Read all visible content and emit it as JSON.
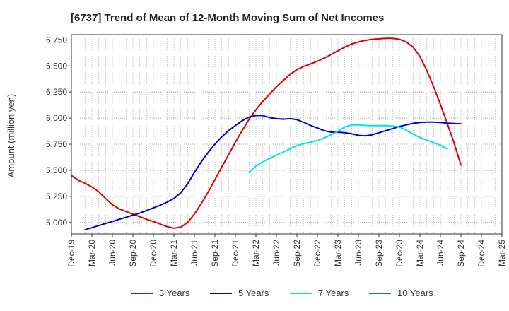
{
  "chart_data": {
    "type": "line",
    "title": "[6737]  Trend of Mean of 12-Month Moving Sum of Net Incomes",
    "xlabel": "",
    "ylabel": "Amount (million yen)",
    "ylim": [
      4890,
      6800
    ],
    "yticks": [
      5000,
      5250,
      5500,
      5750,
      6000,
      6250,
      6500,
      6750
    ],
    "ytick_labels": [
      "5,000",
      "5,250",
      "5,500",
      "5,750",
      "6,000",
      "6,250",
      "6,500",
      "6,750"
    ],
    "x_categories": [
      "Dec-19",
      "Mar-20",
      "Jun-20",
      "Sep-20",
      "Dec-20",
      "Mar-21",
      "Jun-21",
      "Sep-21",
      "Dec-21",
      "Mar-22",
      "Jun-22",
      "Sep-22",
      "Dec-22",
      "Mar-23",
      "Jun-23",
      "Sep-23",
      "Dec-23",
      "Mar-24",
      "Jun-24",
      "Sep-24",
      "Dec-24",
      "Mar-25"
    ],
    "grid": true,
    "legend_position": "bottom",
    "series": [
      {
        "name": "3 Years",
        "color": "#dd0000",
        "values": [
          [
            0,
            5450
          ],
          [
            0.33,
            5405
          ],
          [
            0.67,
            5375
          ],
          [
            1,
            5340
          ],
          [
            1.33,
            5295
          ],
          [
            1.67,
            5230
          ],
          [
            2,
            5170
          ],
          [
            2.33,
            5130
          ],
          [
            2.67,
            5105
          ],
          [
            3,
            5080
          ],
          [
            3.33,
            5055
          ],
          [
            3.67,
            5030
          ],
          [
            4,
            5010
          ],
          [
            4.33,
            4985
          ],
          [
            4.67,
            4960
          ],
          [
            5,
            4945
          ],
          [
            5.33,
            4955
          ],
          [
            5.67,
            5000
          ],
          [
            6,
            5080
          ],
          [
            6.33,
            5180
          ],
          [
            6.67,
            5290
          ],
          [
            7,
            5410
          ],
          [
            7.33,
            5530
          ],
          [
            7.67,
            5650
          ],
          [
            8,
            5770
          ],
          [
            8.33,
            5880
          ],
          [
            8.67,
            5990
          ],
          [
            9,
            6080
          ],
          [
            9.33,
            6160
          ],
          [
            9.67,
            6230
          ],
          [
            10,
            6300
          ],
          [
            10.33,
            6360
          ],
          [
            10.67,
            6420
          ],
          [
            11,
            6465
          ],
          [
            11.33,
            6495
          ],
          [
            11.67,
            6520
          ],
          [
            12,
            6545
          ],
          [
            12.33,
            6575
          ],
          [
            12.67,
            6610
          ],
          [
            13,
            6645
          ],
          [
            13.33,
            6680
          ],
          [
            13.67,
            6710
          ],
          [
            14,
            6730
          ],
          [
            14.33,
            6745
          ],
          [
            14.67,
            6755
          ],
          [
            15,
            6760
          ],
          [
            15.33,
            6765
          ],
          [
            15.67,
            6765
          ],
          [
            16,
            6755
          ],
          [
            16.33,
            6730
          ],
          [
            16.67,
            6680
          ],
          [
            17,
            6590
          ],
          [
            17.33,
            6460
          ],
          [
            17.67,
            6300
          ],
          [
            18,
            6130
          ],
          [
            18.33,
            5950
          ],
          [
            18.67,
            5760
          ],
          [
            19,
            5550
          ]
        ]
      },
      {
        "name": "5 Years",
        "color": "#0000cc",
        "values": [
          [
            0.67,
            4930
          ],
          [
            1,
            4950
          ],
          [
            1.33,
            4970
          ],
          [
            1.67,
            4990
          ],
          [
            2,
            5010
          ],
          [
            2.33,
            5030
          ],
          [
            2.67,
            5050
          ],
          [
            3,
            5070
          ],
          [
            3.33,
            5090
          ],
          [
            3.67,
            5115
          ],
          [
            4,
            5140
          ],
          [
            4.33,
            5165
          ],
          [
            4.67,
            5195
          ],
          [
            5,
            5230
          ],
          [
            5.33,
            5285
          ],
          [
            5.67,
            5370
          ],
          [
            6,
            5480
          ],
          [
            6.33,
            5580
          ],
          [
            6.67,
            5670
          ],
          [
            7,
            5750
          ],
          [
            7.33,
            5820
          ],
          [
            7.67,
            5880
          ],
          [
            8,
            5930
          ],
          [
            8.33,
            5975
          ],
          [
            8.67,
            6010
          ],
          [
            9,
            6025
          ],
          [
            9.33,
            6025
          ],
          [
            9.67,
            6005
          ],
          [
            10,
            5995
          ],
          [
            10.33,
            5990
          ],
          [
            10.67,
            5995
          ],
          [
            11,
            5985
          ],
          [
            11.33,
            5960
          ],
          [
            11.67,
            5930
          ],
          [
            12,
            5905
          ],
          [
            12.33,
            5880
          ],
          [
            12.67,
            5865
          ],
          [
            13,
            5865
          ],
          [
            13.33,
            5860
          ],
          [
            13.67,
            5850
          ],
          [
            14,
            5835
          ],
          [
            14.33,
            5830
          ],
          [
            14.67,
            5840
          ],
          [
            15,
            5860
          ],
          [
            15.33,
            5880
          ],
          [
            15.67,
            5900
          ],
          [
            16,
            5920
          ],
          [
            16.33,
            5935
          ],
          [
            16.67,
            5950
          ],
          [
            17,
            5958
          ],
          [
            17.33,
            5962
          ],
          [
            17.67,
            5962
          ],
          [
            18,
            5958
          ],
          [
            18.33,
            5952
          ],
          [
            18.67,
            5948
          ],
          [
            19,
            5945
          ]
        ]
      },
      {
        "name": "7 Years",
        "color": "#00e5e5",
        "values": [
          [
            8.67,
            5480
          ],
          [
            9,
            5540
          ],
          [
            9.33,
            5580
          ],
          [
            9.67,
            5615
          ],
          [
            10,
            5645
          ],
          [
            10.33,
            5675
          ],
          [
            10.67,
            5705
          ],
          [
            11,
            5735
          ],
          [
            11.33,
            5755
          ],
          [
            11.67,
            5770
          ],
          [
            12,
            5785
          ],
          [
            12.33,
            5810
          ],
          [
            12.67,
            5840
          ],
          [
            13,
            5875
          ],
          [
            13.33,
            5915
          ],
          [
            13.67,
            5935
          ],
          [
            14,
            5935
          ],
          [
            14.33,
            5930
          ],
          [
            14.67,
            5928
          ],
          [
            15,
            5928
          ],
          [
            15.33,
            5928
          ],
          [
            15.67,
            5925
          ],
          [
            16,
            5915
          ],
          [
            16.33,
            5885
          ],
          [
            16.67,
            5845
          ],
          [
            17,
            5815
          ],
          [
            17.33,
            5790
          ],
          [
            17.67,
            5765
          ],
          [
            18,
            5740
          ],
          [
            18.33,
            5705
          ]
        ]
      },
      {
        "name": "10 Years",
        "color": "#228b22",
        "values": []
      }
    ]
  }
}
